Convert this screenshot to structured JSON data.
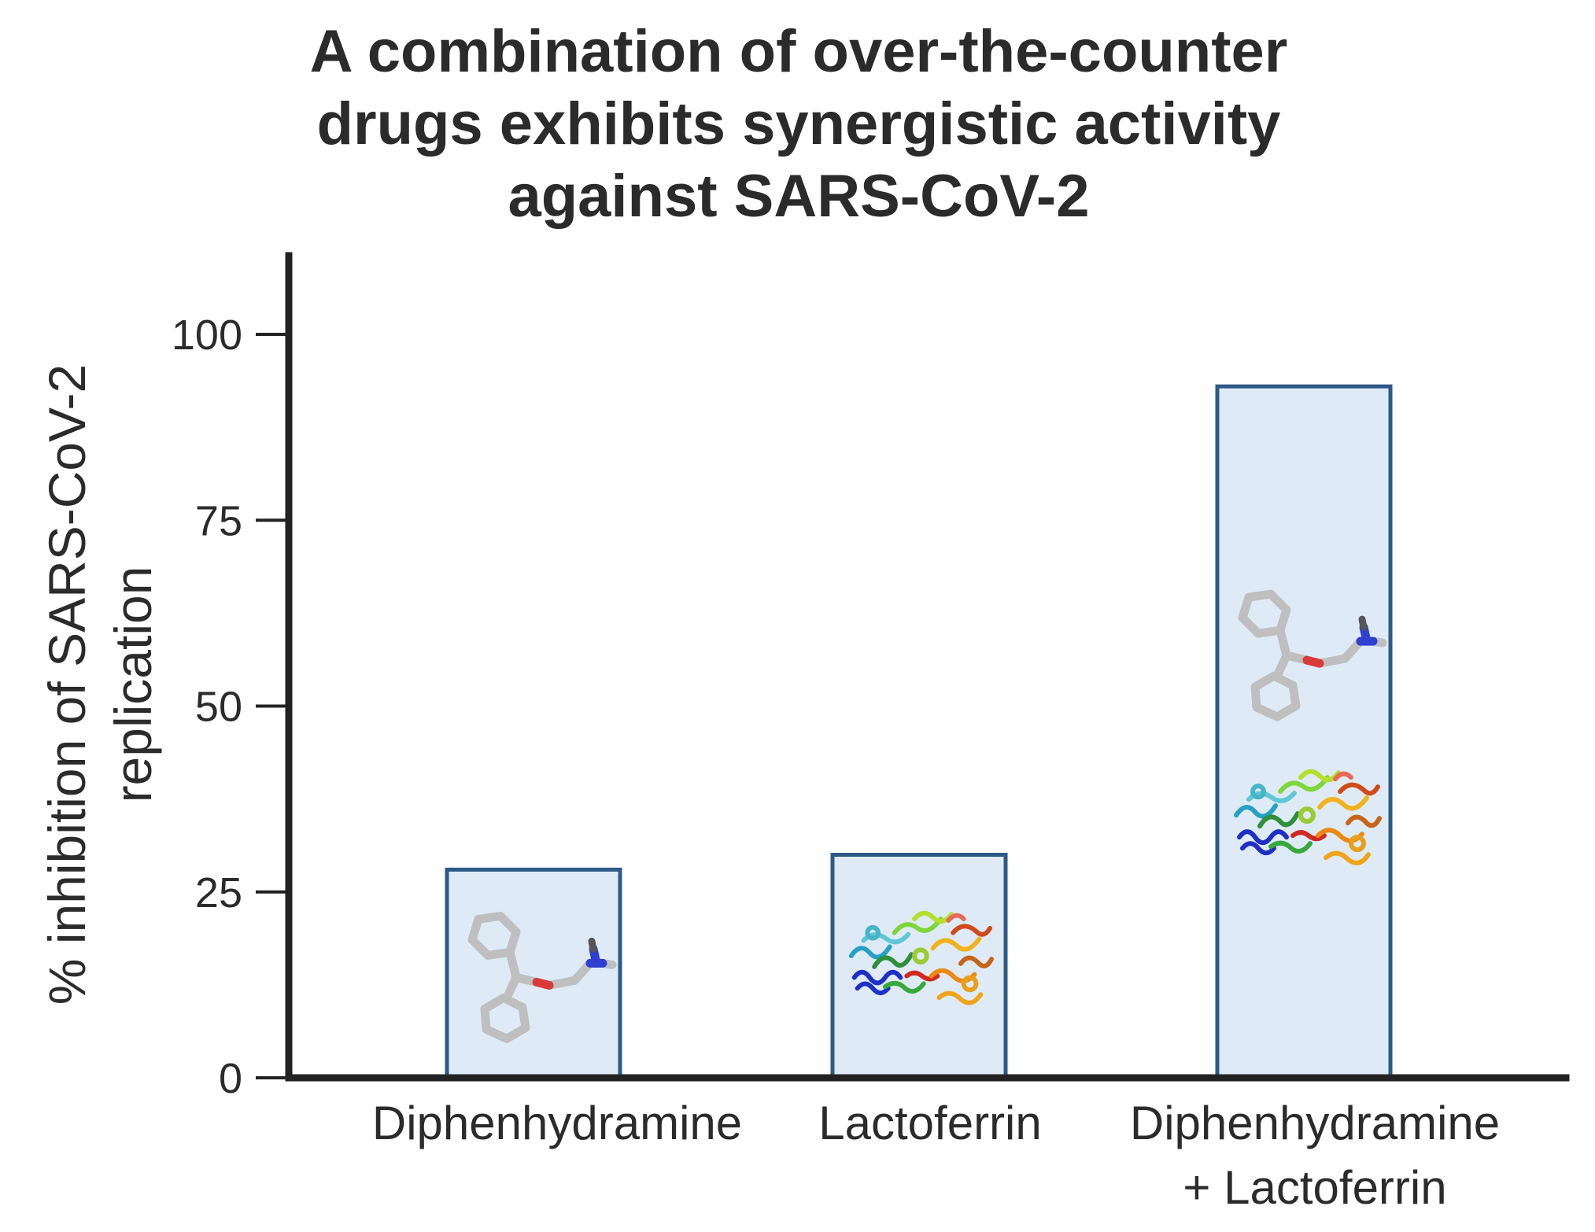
{
  "chart_data": {
    "type": "bar",
    "title_lines": [
      "A combination of over-the-counter",
      "drugs exhibits synergistic activity",
      "against SARS-CoV-2"
    ],
    "ylabel_lines": [
      "% inhibition of SARS-CoV-2",
      "replication"
    ],
    "xlabel": "",
    "ylim": [
      0,
      110
    ],
    "yticks": [
      0,
      25,
      50,
      75,
      100
    ],
    "categories": [
      [
        "Diphenhydramine"
      ],
      [
        "Lactoferrin"
      ],
      [
        "Diphenhydramine",
        "+ Lactoferrin"
      ]
    ],
    "values": [
      28,
      30,
      93
    ],
    "bar_icons": [
      [
        "diphenhydramine-molecule"
      ],
      [
        "lactoferrin-protein"
      ],
      [
        "diphenhydramine-molecule",
        "lactoferrin-protein"
      ]
    ],
    "bar_fill": "#deebf7",
    "bar_stroke": "#2e5a87",
    "axis_color": "#222222",
    "grid": false,
    "legend": "none"
  }
}
